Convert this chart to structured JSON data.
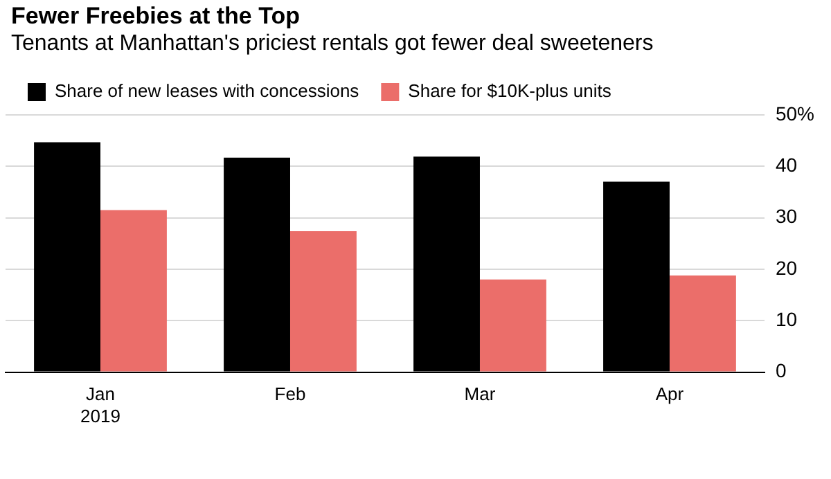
{
  "chart_data": {
    "type": "bar",
    "title": "Fewer Freebies at the Top",
    "subtitle": "Tenants at Manhattan's priciest rentals got fewer deal sweeteners",
    "categories": [
      "Jan\n2019",
      "Feb",
      "Mar",
      "Apr"
    ],
    "series": [
      {
        "name": "Share of new leases with concessions",
        "color": "#000000",
        "values": [
          44.7,
          41.7,
          41.9,
          37.0
        ]
      },
      {
        "name": "Share for $10K-plus units",
        "color": "#eb6e6a",
        "values": [
          31.5,
          27.4,
          18.0,
          18.8
        ]
      }
    ],
    "ylim": [
      0,
      50
    ],
    "yticks": [
      0,
      10,
      20,
      30,
      40,
      {
        "value": 50,
        "label": "50%"
      }
    ],
    "grid": "y",
    "legend": "top left"
  }
}
